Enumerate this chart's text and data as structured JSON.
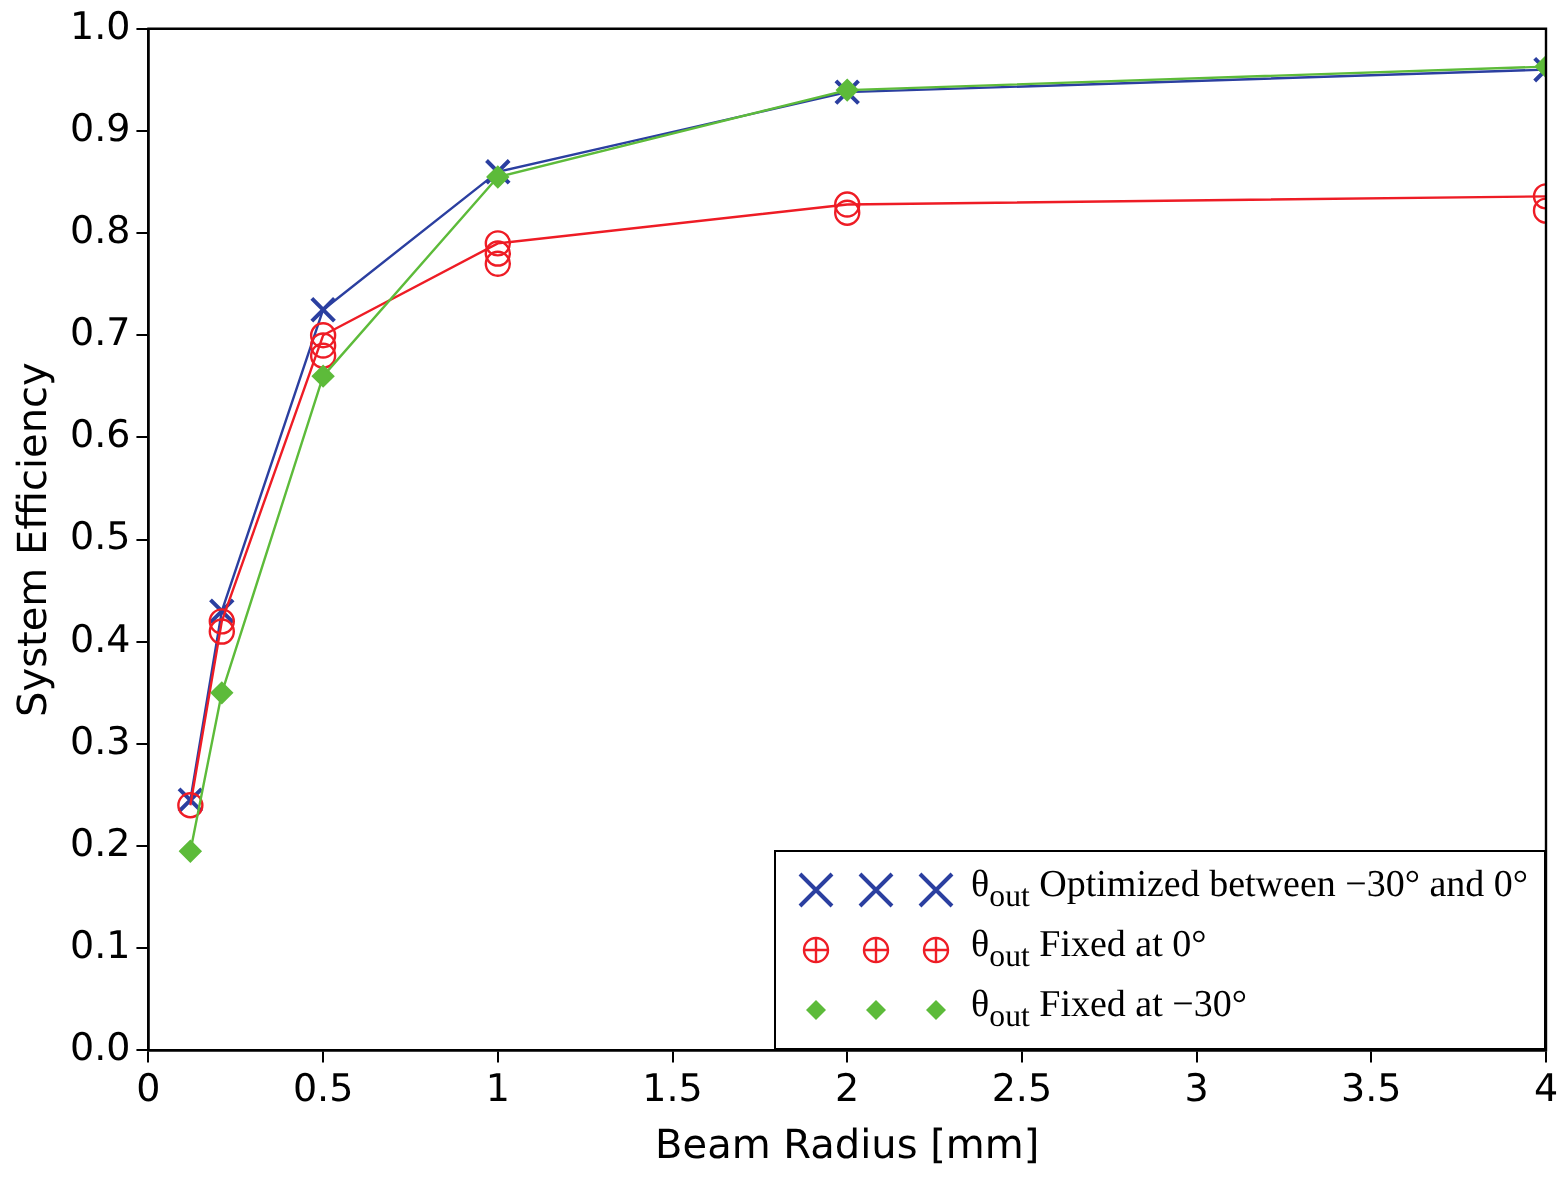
{
  "chart_data": {
    "type": "line",
    "xlabel": "Beam Radius [mm]",
    "ylabel": "System Efficiency",
    "xlim": [
      0,
      4
    ],
    "xticks": [
      0,
      0.5,
      1,
      1.5,
      2,
      2.5,
      3,
      3.5,
      4
    ],
    "ylim": [
      0,
      1
    ],
    "yticks": [
      {
        "value": 0,
        "label": "0.0"
      },
      0.1,
      0.2,
      0.3,
      0.4,
      0.5,
      0.6,
      0.7,
      0.8,
      0.9,
      {
        "value": 1,
        "label": "1.0"
      }
    ],
    "grid": false,
    "legend": "bottom right",
    "series": [
      {
        "name": "θ$_{out}$ Optimized between  −30° and 0°",
        "color": "#2b3fa0",
        "marker": "cross",
        "x": [
          0.12,
          0.21,
          0.5,
          1,
          2,
          4
        ],
        "values": [
          0.245,
          0.43,
          0.725,
          0.86,
          0.938,
          0.96
        ]
      },
      {
        "name": "θ$_{out}$ Fixed at 0°",
        "color": "#ee1c25",
        "marker": "circle",
        "x": [
          0.12,
          0.21,
          0.5,
          1,
          2,
          4
        ],
        "values": [
          0.24,
          0.42,
          0.7,
          0.79,
          0.828,
          0.836
        ]
      },
      {
        "type": "scatter",
        "color": "#ee1c25",
        "marker": "circle",
        "x": [
          0.21,
          0.5,
          0.5,
          1,
          1,
          2,
          4
        ],
        "values": [
          0.41,
          0.69,
          0.68,
          0.78,
          0.77,
          0.82,
          0.822
        ]
      },
      {
        "name": "θ$_{out}$ Fixed at  −30°",
        "color": "#5dbb3a",
        "marker": "diamond",
        "x": [
          0.12,
          0.21,
          0.5,
          1,
          2,
          4
        ],
        "values": [
          0.195,
          0.35,
          0.66,
          0.855,
          0.94,
          0.963
        ]
      }
    ]
  }
}
